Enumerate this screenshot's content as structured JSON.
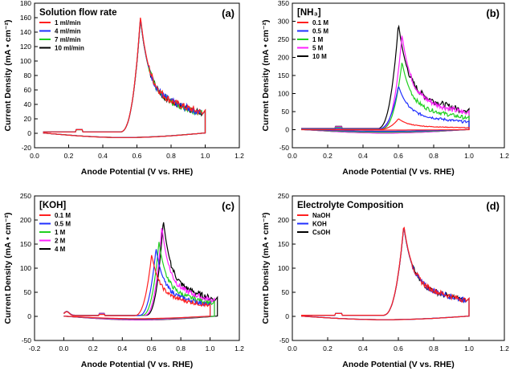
{
  "chart_data": [
    {
      "type": "line",
      "panel_label": "(a)",
      "title": "Solution flow rate",
      "xlabel": "Anode Potential (V vs. RHE)",
      "ylabel": "Current Density (mA • cm⁻²)",
      "xlim": [
        0.0,
        1.2
      ],
      "ylim": [
        -20,
        180
      ],
      "xticks": [
        "0.0",
        "0.2",
        "0.4",
        "0.6",
        "0.8",
        "1.0",
        "1.2"
      ],
      "yticks": [
        "-20",
        "0",
        "20",
        "40",
        "60",
        "80",
        "100",
        "120",
        "140",
        "160",
        "180"
      ],
      "legend_position": "top-left",
      "series": [
        {
          "name": "1 ml/min",
          "color": "#ff2020",
          "peak": 160,
          "peak_v": 0.62,
          "start_v": 0.05,
          "end_v": 1.0
        },
        {
          "name": "4 ml/min",
          "color": "#2030ff",
          "peak": 158,
          "peak_v": 0.62,
          "start_v": 0.05,
          "end_v": 1.0
        },
        {
          "name": "7 ml/min",
          "color": "#20d020",
          "peak": 157,
          "peak_v": 0.62,
          "start_v": 0.05,
          "end_v": 1.0
        },
        {
          "name": "10 ml/min",
          "color": "#000000",
          "peak": 157,
          "peak_v": 0.62,
          "start_v": 0.05,
          "end_v": 1.0
        }
      ]
    },
    {
      "type": "line",
      "panel_label": "(b)",
      "title": "[NH₃]",
      "xlabel": "Anode Potential (V vs. RHE)",
      "ylabel": "Current Density (mA • cm⁻²)",
      "xlim": [
        0.0,
        1.2
      ],
      "ylim": [
        -50,
        350
      ],
      "xticks": [
        "0.0",
        "0.2",
        "0.4",
        "0.6",
        "0.8",
        "1.0",
        "1.2"
      ],
      "yticks": [
        "-50",
        "0",
        "50",
        "100",
        "150",
        "200",
        "250",
        "300",
        "350"
      ],
      "legend_position": "top-left",
      "series": [
        {
          "name": "0.1 M",
          "color": "#ff2020",
          "peak": 30,
          "peak_v": 0.6,
          "start_v": 0.05,
          "end_v": 1.0
        },
        {
          "name": "0.5 M",
          "color": "#2030ff",
          "peak": 120,
          "peak_v": 0.6,
          "start_v": 0.05,
          "end_v": 1.0
        },
        {
          "name": "1 M",
          "color": "#20d020",
          "peak": 185,
          "peak_v": 0.62,
          "start_v": 0.05,
          "end_v": 1.0
        },
        {
          "name": "5 M",
          "color": "#ff20ff",
          "peak": 260,
          "peak_v": 0.62,
          "start_v": 0.05,
          "end_v": 1.0
        },
        {
          "name": "10 M",
          "color": "#000000",
          "peak": 290,
          "peak_v": 0.6,
          "start_v": 0.05,
          "end_v": 1.0
        }
      ]
    },
    {
      "type": "line",
      "panel_label": "(c)",
      "title": "[KOH]",
      "xlabel": "Anode Potential (V vs. RHE)",
      "ylabel": "Current Density (mA • cm⁻²)",
      "xlim": [
        -0.2,
        1.2
      ],
      "ylim": [
        -50,
        250
      ],
      "xticks": [
        "-0.2",
        "0.0",
        "0.2",
        "0.4",
        "0.6",
        "0.8",
        "1.0",
        "1.2"
      ],
      "yticks": [
        "-50",
        "0",
        "50",
        "100",
        "150",
        "200",
        "250"
      ],
      "legend_position": "top-left",
      "series": [
        {
          "name": "0.1 M",
          "color": "#ff2020",
          "peak": 127,
          "peak_v": 0.6,
          "start_v": 0.0,
          "end_v": 1.0
        },
        {
          "name": "0.5 M",
          "color": "#2030ff",
          "peak": 140,
          "peak_v": 0.63,
          "start_v": 0.0,
          "end_v": 1.0
        },
        {
          "name": "1 M",
          "color": "#20d020",
          "peak": 153,
          "peak_v": 0.65,
          "start_v": 0.0,
          "end_v": 1.03
        },
        {
          "name": "2 M",
          "color": "#ff20ff",
          "peak": 185,
          "peak_v": 0.67,
          "start_v": 0.0,
          "end_v": 1.03
        },
        {
          "name": "4 M",
          "color": "#000000",
          "peak": 198,
          "peak_v": 0.68,
          "start_v": 0.0,
          "end_v": 1.05
        }
      ]
    },
    {
      "type": "line",
      "panel_label": "(d)",
      "title": "Electrolyte Composition",
      "xlabel": "Anode Potential (V vs. RHE)",
      "ylabel": "Current Density (mA • cm⁻²)",
      "xlim": [
        0.0,
        1.2
      ],
      "ylim": [
        -50,
        250
      ],
      "xticks": [
        "0.0",
        "0.2",
        "0.4",
        "0.6",
        "0.8",
        "1.0",
        "1.2"
      ],
      "yticks": [
        "-50",
        "0",
        "50",
        "100",
        "150",
        "200",
        "250"
      ],
      "legend_position": "top-left",
      "series": [
        {
          "name": "NaOH",
          "color": "#ff2020",
          "peak": 188,
          "peak_v": 0.63,
          "start_v": 0.05,
          "end_v": 1.0
        },
        {
          "name": "KOH",
          "color": "#2030ff",
          "peak": 186,
          "peak_v": 0.63,
          "start_v": 0.05,
          "end_v": 1.0
        },
        {
          "name": "CsOH",
          "color": "#000000",
          "peak": 185,
          "peak_v": 0.63,
          "start_v": 0.05,
          "end_v": 1.0
        }
      ]
    }
  ]
}
